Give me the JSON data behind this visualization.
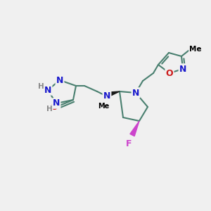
{
  "bg_color": "#f0f0f0",
  "bond_color": "#4a8070",
  "bond_width": 1.5,
  "atom_colors": {
    "N": "#1a1acc",
    "O": "#cc1a1a",
    "F": "#cc44cc",
    "H": "#888888",
    "C": "#000000"
  },
  "figsize": [
    3.0,
    3.0
  ],
  "dpi": 100
}
